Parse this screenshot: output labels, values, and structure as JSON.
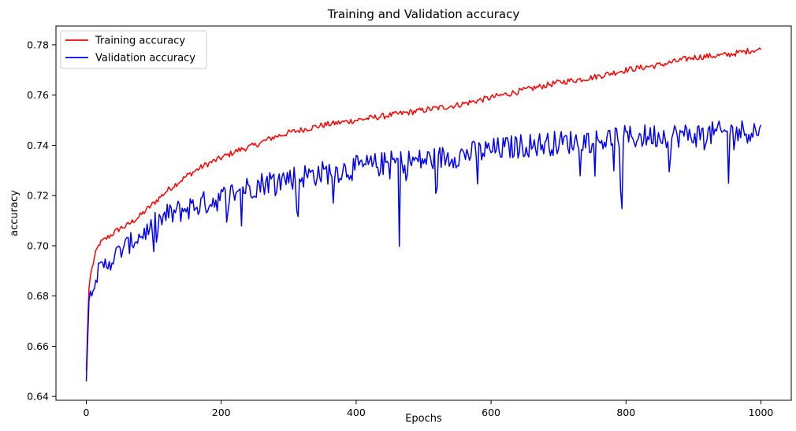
{
  "chart_data": {
    "type": "line",
    "title": "Training and Validation accuracy",
    "xlabel": "Epochs",
    "ylabel": "accuracy",
    "xlim": [
      -45,
      1045
    ],
    "ylim": [
      0.6385,
      0.7875
    ],
    "x_ticks": [
      0,
      200,
      400,
      600,
      800,
      1000
    ],
    "y_ticks": [
      0.64,
      0.66,
      0.68,
      0.7,
      0.72,
      0.74,
      0.76,
      0.78
    ],
    "y_tick_labels": [
      "0.64",
      "0.66",
      "0.68",
      "0.70",
      "0.72",
      "0.74",
      "0.76",
      "0.78"
    ],
    "grid": false,
    "legend_position": "top-left",
    "series": [
      {
        "name": "Training accuracy",
        "color": "#ff0000",
        "x": [
          0,
          2,
          4,
          6,
          10,
          15,
          20,
          30,
          40,
          50,
          60,
          70,
          80,
          100,
          120,
          150,
          175,
          200,
          225,
          250,
          275,
          300,
          350,
          400,
          450,
          500,
          550,
          600,
          650,
          700,
          750,
          800,
          850,
          900,
          950,
          990,
          1000
        ],
        "y": [
          0.65,
          0.668,
          0.683,
          0.688,
          0.693,
          0.698,
          0.701,
          0.703,
          0.705,
          0.707,
          0.708,
          0.71,
          0.712,
          0.717,
          0.722,
          0.728,
          0.732,
          0.735,
          0.738,
          0.74,
          0.743,
          0.745,
          0.748,
          0.75,
          0.752,
          0.754,
          0.756,
          0.759,
          0.762,
          0.765,
          0.767,
          0.77,
          0.772,
          0.775,
          0.776,
          0.778,
          0.778
        ]
      },
      {
        "name": "Validation accuracy",
        "color": "#0000ff",
        "x": [
          0,
          2,
          4,
          6,
          10,
          15,
          20,
          30,
          40,
          50,
          60,
          70,
          80,
          100,
          120,
          150,
          175,
          200,
          225,
          250,
          275,
          300,
          350,
          400,
          450,
          500,
          550,
          600,
          650,
          700,
          750,
          800,
          850,
          900,
          950,
          990,
          1000
        ],
        "y": [
          0.646,
          0.662,
          0.678,
          0.682,
          0.686,
          0.688,
          0.69,
          0.693,
          0.695,
          0.698,
          0.7,
          0.702,
          0.704,
          0.708,
          0.712,
          0.715,
          0.717,
          0.719,
          0.722,
          0.724,
          0.726,
          0.727,
          0.729,
          0.731,
          0.733,
          0.734,
          0.736,
          0.738,
          0.74,
          0.741,
          0.742,
          0.743,
          0.744,
          0.744,
          0.745,
          0.746,
          0.745
        ]
      }
    ]
  }
}
